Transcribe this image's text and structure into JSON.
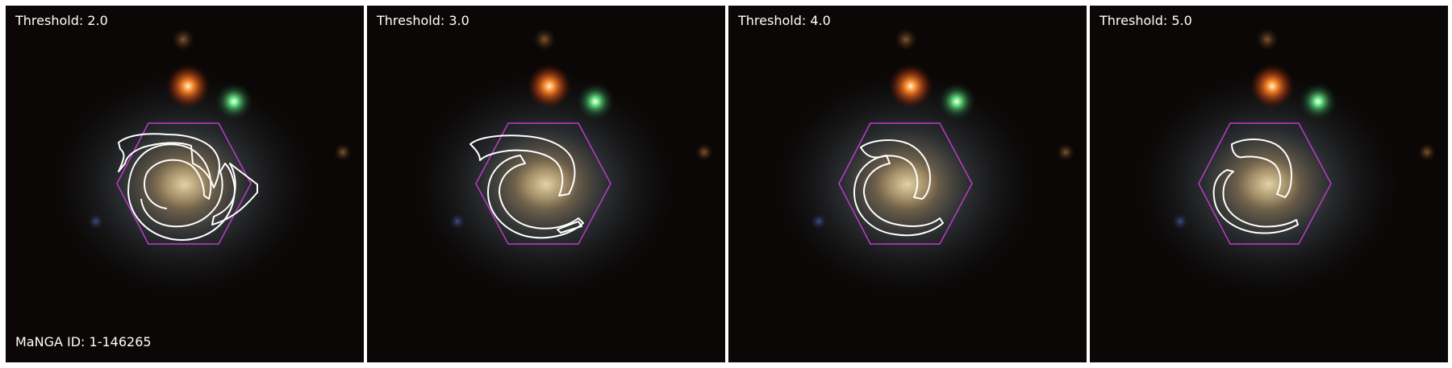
{
  "panels": [
    {
      "label": "Threshold: 2.0"
    },
    {
      "label": "Threshold: 3.0"
    },
    {
      "label": "Threshold: 4.0"
    },
    {
      "label": "Threshold: 5.0"
    }
  ],
  "galaxy_id_label": "MaNGA ID: 1-146265",
  "colors": {
    "background": "#0a0706",
    "contour": "#ffffff",
    "hexagon": "#c43bd0",
    "galaxy_core": "#c8b48a",
    "red_star": "#ff7a1a",
    "green_star": "#8cff9a"
  }
}
